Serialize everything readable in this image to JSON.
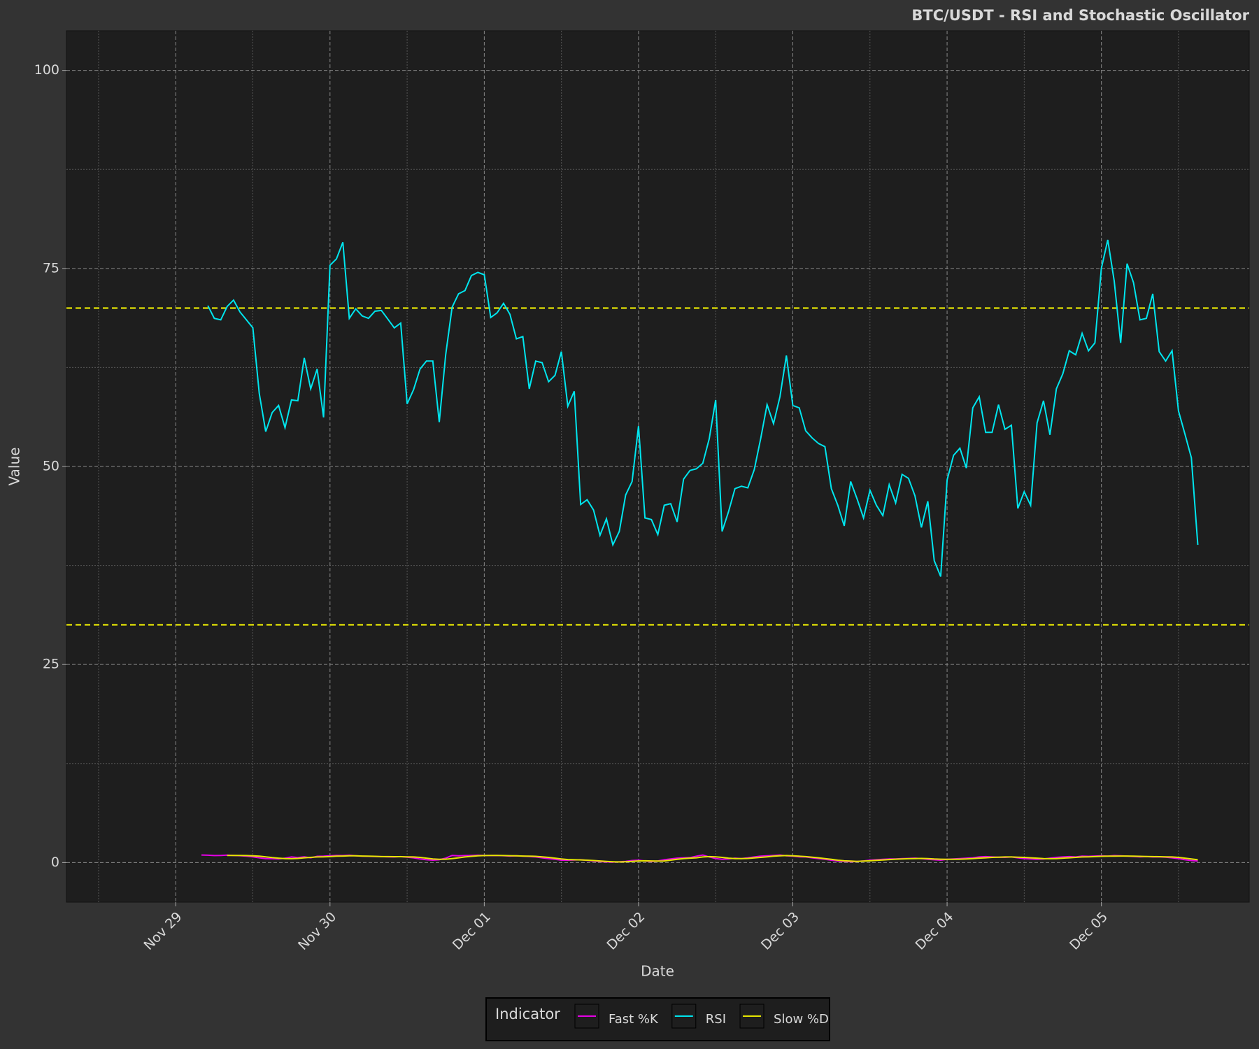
{
  "chart_data": {
    "type": "line",
    "title": "BTC/USDT - RSI and Stochastic Oscillator",
    "x_label": "Date",
    "y_label": "Value",
    "legend_title": "Indicator",
    "x": [
      "11-29 04:00",
      "11-29 05:00",
      "11-29 06:00",
      "11-29 07:00",
      "11-29 08:00",
      "11-29 09:00",
      "11-29 10:00",
      "11-29 11:00",
      "11-29 12:00",
      "11-29 13:00",
      "11-29 14:00",
      "11-29 15:00",
      "11-29 16:00",
      "11-29 17:00",
      "11-29 18:00",
      "11-29 19:00",
      "11-29 20:00",
      "11-29 21:00",
      "11-29 22:00",
      "11-29 23:00",
      "11-30 00:00",
      "11-30 01:00",
      "11-30 02:00",
      "11-30 03:00",
      "11-30 04:00",
      "11-30 05:00",
      "11-30 06:00",
      "11-30 07:00",
      "11-30 08:00",
      "11-30 09:00",
      "11-30 10:00",
      "11-30 11:00",
      "11-30 12:00",
      "11-30 13:00",
      "11-30 14:00",
      "11-30 15:00",
      "11-30 16:00",
      "11-30 17:00",
      "11-30 18:00",
      "11-30 19:00",
      "11-30 20:00",
      "11-30 21:00",
      "11-30 22:00",
      "11-30 23:00",
      "12-01 00:00",
      "12-01 01:00",
      "12-01 02:00",
      "12-01 03:00",
      "12-01 04:00",
      "12-01 05:00",
      "12-01 06:00",
      "12-01 07:00",
      "12-01 08:00",
      "12-01 09:00",
      "12-01 10:00",
      "12-01 11:00",
      "12-01 12:00",
      "12-01 13:00",
      "12-01 14:00",
      "12-01 15:00",
      "12-01 16:00",
      "12-01 17:00",
      "12-01 18:00",
      "12-01 19:00",
      "12-01 20:00",
      "12-01 21:00",
      "12-01 22:00",
      "12-01 23:00",
      "12-02 00:00",
      "12-02 01:00",
      "12-02 02:00",
      "12-02 03:00",
      "12-02 04:00",
      "12-02 05:00",
      "12-02 06:00",
      "12-02 07:00",
      "12-02 08:00",
      "12-02 09:00",
      "12-02 10:00",
      "12-02 11:00",
      "12-02 12:00",
      "12-02 13:00",
      "12-02 14:00",
      "12-02 15:00",
      "12-02 16:00",
      "12-02 17:00",
      "12-02 18:00",
      "12-02 19:00",
      "12-02 20:00",
      "12-02 21:00",
      "12-02 22:00",
      "12-02 23:00",
      "12-03 00:00",
      "12-03 01:00",
      "12-03 02:00",
      "12-03 03:00",
      "12-03 04:00",
      "12-03 05:00",
      "12-03 06:00",
      "12-03 07:00",
      "12-03 08:00",
      "12-03 09:00",
      "12-03 10:00",
      "12-03 11:00",
      "12-03 12:00",
      "12-03 13:00",
      "12-03 14:00",
      "12-03 15:00",
      "12-03 16:00",
      "12-03 17:00",
      "12-03 18:00",
      "12-03 19:00",
      "12-03 20:00",
      "12-03 21:00",
      "12-03 22:00",
      "12-03 23:00",
      "12-04 00:00",
      "12-04 01:00",
      "12-04 02:00",
      "12-04 03:00",
      "12-04 04:00",
      "12-04 05:00",
      "12-04 06:00",
      "12-04 07:00",
      "12-04 08:00",
      "12-04 09:00",
      "12-04 10:00",
      "12-04 11:00",
      "12-04 12:00",
      "12-04 13:00",
      "12-04 14:00",
      "12-04 15:00",
      "12-04 16:00",
      "12-04 17:00",
      "12-04 18:00",
      "12-04 19:00",
      "12-04 20:00",
      "12-04 21:00",
      "12-04 22:00",
      "12-04 23:00",
      "12-05 00:00",
      "12-05 01:00",
      "12-05 02:00",
      "12-05 03:00",
      "12-05 04:00",
      "12-05 05:00",
      "12-05 06:00",
      "12-05 07:00",
      "12-05 08:00",
      "12-05 09:00",
      "12-05 10:00",
      "12-05 11:00",
      "12-05 12:00",
      "12-05 13:00",
      "12-05 14:00",
      "12-05 15:00"
    ],
    "series": [
      {
        "name": "Fast %K",
        "color": "#e600e6",
        "values": [
          0.95,
          0.92,
          0.88,
          0.9,
          0.93,
          0.9,
          0.86,
          0.8,
          0.72,
          0.6,
          0.5,
          0.48,
          0.45,
          0.55,
          0.7,
          0.62,
          0.72,
          0.6,
          0.78,
          0.8,
          0.85,
          0.9,
          0.88,
          0.92,
          0.85,
          0.8,
          0.78,
          0.76,
          0.75,
          0.72,
          0.7,
          0.75,
          0.68,
          0.6,
          0.45,
          0.35,
          0.3,
          0.35,
          0.55,
          0.9,
          0.85,
          0.88,
          0.9,
          0.92,
          0.9,
          0.88,
          0.9,
          0.86,
          0.82,
          0.84,
          0.8,
          0.76,
          0.7,
          0.6,
          0.5,
          0.4,
          0.3,
          0.3,
          0.32,
          0.35,
          0.28,
          0.2,
          0.12,
          0.08,
          0.05,
          0.1,
          0.15,
          0.25,
          0.3,
          0.2,
          0.12,
          0.2,
          0.35,
          0.45,
          0.55,
          0.6,
          0.62,
          0.8,
          0.95,
          0.7,
          0.5,
          0.4,
          0.45,
          0.55,
          0.5,
          0.6,
          0.7,
          0.8,
          0.85,
          0.9,
          0.95,
          0.85,
          0.8,
          0.72,
          0.7,
          0.6,
          0.5,
          0.4,
          0.3,
          0.2,
          0.15,
          0.1,
          0.15,
          0.2,
          0.3,
          0.35,
          0.4,
          0.45,
          0.45,
          0.5,
          0.52,
          0.55,
          0.5,
          0.4,
          0.35,
          0.3,
          0.4,
          0.45,
          0.5,
          0.55,
          0.6,
          0.7,
          0.75,
          0.7,
          0.68,
          0.65,
          0.7,
          0.6,
          0.5,
          0.45,
          0.4,
          0.45,
          0.55,
          0.65,
          0.7,
          0.75,
          0.7,
          0.8,
          0.78,
          0.82,
          0.85,
          0.8,
          0.88,
          0.85,
          0.8,
          0.76,
          0.72,
          0.75,
          0.7,
          0.72,
          0.68,
          0.6,
          0.5,
          0.35,
          0.25,
          0.2
        ]
      },
      {
        "name": "RSI",
        "color": "#00e5ee",
        "values": [
          null,
          70.3,
          68.7,
          68.5,
          70.2,
          71.0,
          69.5,
          68.5,
          67.5,
          59.2,
          54.4,
          56.8,
          57.7,
          54.9,
          58.4,
          58.3,
          63.7,
          59.8,
          62.3,
          56.2,
          75.4,
          76.2,
          78.3,
          68.7,
          69.9,
          69.0,
          68.7,
          69.6,
          69.7,
          68.6,
          67.5,
          68.1,
          57.9,
          59.7,
          62.3,
          63.3,
          63.3,
          55.6,
          64.1,
          70.1,
          71.8,
          72.2,
          74.1,
          74.5,
          74.2,
          68.8,
          69.4,
          70.6,
          69.2,
          66.1,
          66.4,
          59.8,
          63.3,
          63.1,
          60.7,
          61.5,
          64.5,
          57.6,
          59.5,
          45.2,
          45.8,
          44.5,
          41.3,
          43.4,
          40.1,
          41.8,
          46.4,
          48.1,
          55.1,
          43.5,
          43.3,
          41.4,
          45.1,
          45.3,
          43.0,
          48.4,
          49.5,
          49.7,
          50.4,
          53.5,
          58.4,
          41.8,
          44.3,
          47.2,
          47.5,
          47.3,
          49.6,
          53.5,
          57.8,
          55.4,
          58.8,
          64.0,
          57.7,
          57.4,
          54.5,
          53.6,
          52.9,
          52.5,
          47.2,
          45.1,
          42.5,
          48.1,
          45.9,
          43.5,
          47.0,
          45.1,
          43.8,
          47.7,
          45.4,
          49.0,
          48.5,
          46.3,
          42.3,
          45.6,
          38.1,
          36.1,
          48.3,
          51.4,
          52.3,
          49.8,
          57.4,
          58.8,
          54.3,
          54.3,
          57.8,
          54.7,
          55.2,
          44.7,
          46.8,
          45.1,
          55.5,
          58.3,
          54.0,
          59.8,
          61.7,
          64.6,
          64.1,
          66.8,
          64.6,
          65.6,
          75.0,
          78.6,
          73.4,
          65.6,
          75.6,
          73.2,
          68.5,
          68.7,
          71.8,
          64.5,
          63.3,
          64.6,
          57.0,
          54.1,
          51.1,
          40.1
        ]
      },
      {
        "name": "Slow %D",
        "color": "#e6e600",
        "values": [
          null,
          null,
          null,
          null,
          0.9,
          0.9,
          0.9,
          0.88,
          0.85,
          0.8,
          0.72,
          0.62,
          0.55,
          0.5,
          0.48,
          0.52,
          0.6,
          0.65,
          0.7,
          0.72,
          0.75,
          0.8,
          0.82,
          0.85,
          0.85,
          0.82,
          0.8,
          0.78,
          0.75,
          0.75,
          0.74,
          0.74,
          0.72,
          0.7,
          0.65,
          0.55,
          0.45,
          0.4,
          0.42,
          0.5,
          0.6,
          0.7,
          0.78,
          0.85,
          0.88,
          0.9,
          0.9,
          0.88,
          0.86,
          0.84,
          0.82,
          0.8,
          0.78,
          0.72,
          0.65,
          0.55,
          0.45,
          0.38,
          0.35,
          0.33,
          0.3,
          0.25,
          0.2,
          0.15,
          0.1,
          0.08,
          0.1,
          0.15,
          0.2,
          0.22,
          0.2,
          0.18,
          0.2,
          0.3,
          0.4,
          0.5,
          0.55,
          0.6,
          0.7,
          0.75,
          0.72,
          0.65,
          0.55,
          0.5,
          0.5,
          0.52,
          0.58,
          0.65,
          0.72,
          0.8,
          0.85,
          0.88,
          0.85,
          0.8,
          0.75,
          0.68,
          0.6,
          0.5,
          0.4,
          0.3,
          0.22,
          0.18,
          0.15,
          0.18,
          0.22,
          0.28,
          0.32,
          0.38,
          0.42,
          0.45,
          0.48,
          0.5,
          0.52,
          0.5,
          0.45,
          0.42,
          0.4,
          0.4,
          0.42,
          0.45,
          0.5,
          0.55,
          0.6,
          0.65,
          0.68,
          0.7,
          0.7,
          0.68,
          0.65,
          0.6,
          0.55,
          0.5,
          0.48,
          0.5,
          0.55,
          0.6,
          0.65,
          0.7,
          0.72,
          0.75,
          0.78,
          0.8,
          0.8,
          0.82,
          0.82,
          0.8,
          0.78,
          0.76,
          0.75,
          0.74,
          0.72,
          0.7,
          0.65,
          0.55,
          0.45,
          0.35
        ]
      }
    ],
    "hlines": [
      70,
      30
    ],
    "hline_color": "#ffff00",
    "xlim": [
      "11-28 07:00",
      "12-05 23:00"
    ],
    "xticks": [
      {
        "value": "11-29 00:00",
        "label": "Nov 29"
      },
      {
        "value": "11-30 00:00",
        "label": "Nov 30"
      },
      {
        "value": "12-01 00:00",
        "label": "Dec 01"
      },
      {
        "value": "12-02 00:00",
        "label": "Dec 02"
      },
      {
        "value": "12-03 00:00",
        "label": "Dec 03"
      },
      {
        "value": "12-04 00:00",
        "label": "Dec 04"
      },
      {
        "value": "12-05 00:00",
        "label": "Dec 05"
      }
    ],
    "ylim": [
      -5,
      105
    ],
    "yticks": [
      0,
      25,
      50,
      75,
      100
    ],
    "grid": true,
    "legend": "bottom"
  }
}
